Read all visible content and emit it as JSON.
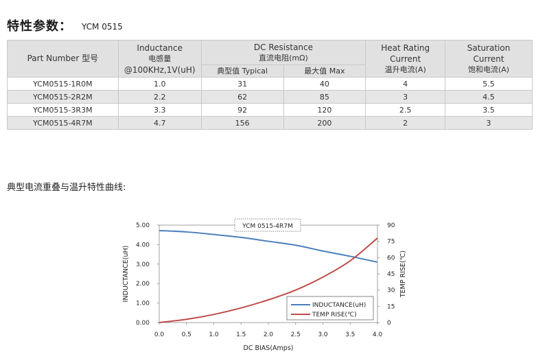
{
  "header": {
    "title": "特性参数：",
    "model": "YCM 0515"
  },
  "table": {
    "headers": {
      "part_number": "Part Number  型号",
      "inductance_en": "Inductance",
      "inductance_cn": "电感量",
      "inductance_unit": "@100KHz,1V(uH)",
      "dcr_en": "DC Resistance",
      "dcr_cn": "直流电阻(mΩ)",
      "dcr_typ": "典型值 Typical",
      "dcr_max": "最大值 Max",
      "heat_en1": "Heat Rating",
      "heat_en2": "Current",
      "heat_cn": "温升电流(A)",
      "sat_en1": "Saturation",
      "sat_en2": "Current",
      "sat_cn": "饱和电流(A)"
    },
    "rows": [
      {
        "part": "YCM0515-1R0M",
        "inductance": "1.0",
        "dcr_typ": "31",
        "dcr_max": "40",
        "heat": "4",
        "sat": "5.5"
      },
      {
        "part": "YCM0515-2R2M",
        "inductance": "2.2",
        "dcr_typ": "62",
        "dcr_max": "85",
        "heat": "3",
        "sat": "4.5"
      },
      {
        "part": "YCM0515-3R3M",
        "inductance": "3.3",
        "dcr_typ": "92",
        "dcr_max": "120",
        "heat": "2.5",
        "sat": "3.5"
      },
      {
        "part": "YCM0515-4R7M",
        "inductance": "4.7",
        "dcr_typ": "156",
        "dcr_max": "200",
        "heat": "2",
        "sat": "3"
      }
    ]
  },
  "curve_title": "典型电流重叠与温升特性曲线:",
  "chart_data": {
    "type": "line",
    "title": "YCM 0515-4R7M",
    "xlabel": "DC BIAS(Amps)",
    "ylabel": "INDUCTANCE(uH)",
    "y2label": "TEMP RISE(℃)",
    "xlim": [
      0,
      4
    ],
    "ylim": [
      0,
      5
    ],
    "y2lim": [
      0,
      90
    ],
    "x_ticks": [
      "0.0",
      "0.5",
      "1.0",
      "1.5",
      "2.0",
      "2.5",
      "3.0",
      "3.5",
      "4.0"
    ],
    "y_ticks": [
      "0.00",
      "1.00",
      "2.00",
      "3.00",
      "4.00",
      "5.00"
    ],
    "y2_ticks": [
      "0",
      "15",
      "30",
      "45",
      "60",
      "75",
      "90"
    ],
    "grid": false,
    "legend": "bottom-right",
    "series": [
      {
        "name": "INDUCTANCE(uH)",
        "axis": "left",
        "color": "#4a7ebb",
        "x": [
          0,
          0.5,
          1.0,
          1.5,
          2.0,
          2.5,
          3.0,
          3.5,
          4.0
        ],
        "y": [
          4.72,
          4.65,
          4.52,
          4.37,
          4.17,
          3.97,
          3.67,
          3.4,
          3.1
        ]
      },
      {
        "name": "TEMP RISE(℃)",
        "axis": "right",
        "color": "#be4b48",
        "x": [
          0,
          0.5,
          1.0,
          1.5,
          2.0,
          2.5,
          3.0,
          3.5,
          4.0
        ],
        "y": [
          0,
          3,
          7.5,
          13.5,
          21,
          30,
          42,
          57,
          78
        ]
      }
    ]
  }
}
